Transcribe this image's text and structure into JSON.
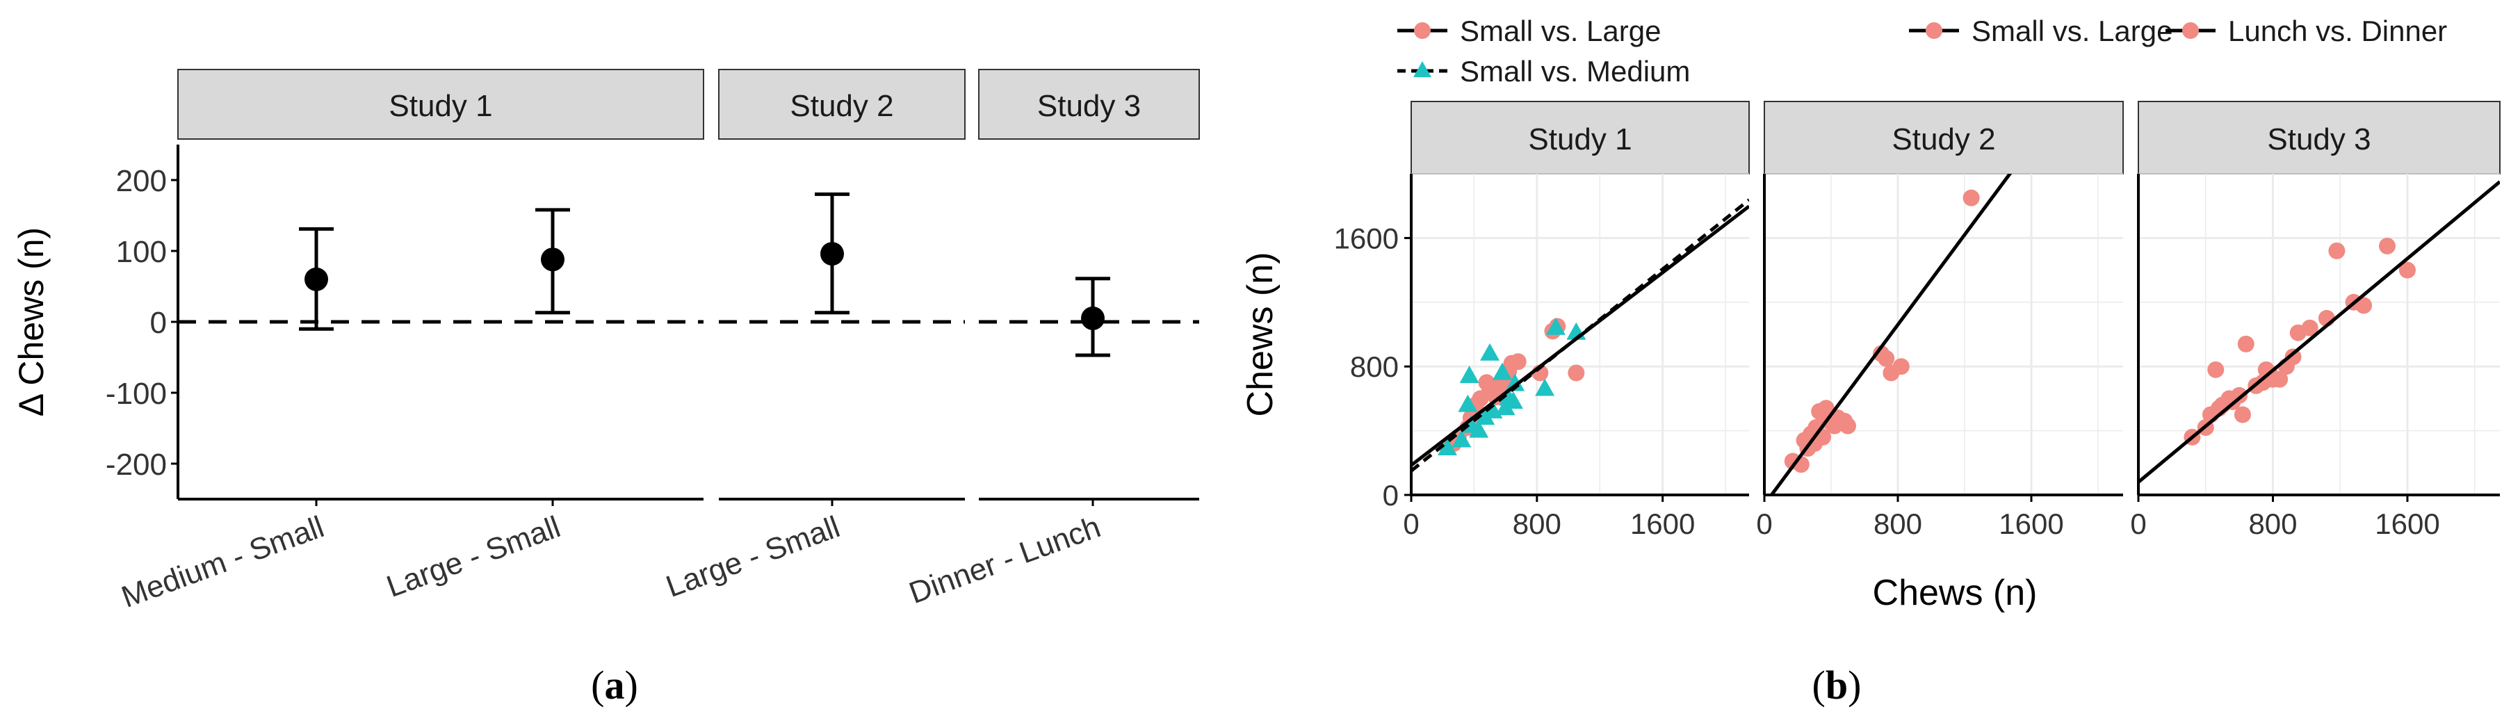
{
  "figure": {
    "caption_a": "a",
    "caption_b": "b",
    "colors": {
      "pink": "#F08A82",
      "teal": "#1FC2C2",
      "strip": "#D9D9D9",
      "grid": "#EBEBEB",
      "ink": "#000000"
    }
  },
  "chart_data": [
    {
      "id": "a",
      "type": "errorbar",
      "ylabel": "Δ Chews (n)",
      "ylim": [
        -250,
        250
      ],
      "yticks": [
        200,
        100,
        0,
        -100,
        -200
      ],
      "reference_line": 0,
      "panels": [
        {
          "strip": "Study 1",
          "points": [
            {
              "label": "Medium - Small",
              "mean": 60,
              "low": -10,
              "high": 131
            },
            {
              "label": "Large - Small",
              "mean": 88,
              "low": 13,
              "high": 158
            }
          ]
        },
        {
          "strip": "Study 2",
          "points": [
            {
              "label": "Large - Small",
              "mean": 96,
              "low": 13,
              "high": 180
            }
          ]
        },
        {
          "strip": "Study 3",
          "points": [
            {
              "label": "Dinner - Lunch",
              "mean": 5,
              "low": -47,
              "high": 61
            }
          ]
        }
      ]
    },
    {
      "id": "b",
      "type": "scatter",
      "xlabel": "Chews (n)",
      "ylabel": "Chews (n)",
      "xlim": [
        0,
        2150
      ],
      "ylim": [
        0,
        2000
      ],
      "xticks": [
        0,
        800,
        1600
      ],
      "yticks": [
        0,
        800,
        1600
      ],
      "legend": [
        {
          "label": "Small vs. Large",
          "marker": "circle",
          "line": "solid"
        },
        {
          "label": "Small vs. Medium",
          "marker": "triangle",
          "line": "dashed"
        },
        {
          "label": "Small vs. Large",
          "marker": "circle",
          "line": "solid"
        },
        {
          "label": "Lunch vs. Dinner",
          "marker": "circle",
          "line": "solid"
        }
      ],
      "panels": [
        {
          "strip": "Study 1",
          "series": [
            {
              "name": "Small vs. Large",
              "marker": "circle",
              "color": "#F08A82",
              "points": [
                [
                  230,
                  300
                ],
                [
                  270,
                  320
                ],
                [
                  300,
                  360
                ],
                [
                  360,
                  420
                ],
                [
                  380,
                  480
                ],
                [
                  400,
                  540
                ],
                [
                  410,
                  560
                ],
                [
                  440,
                  600
                ],
                [
                  480,
                  700
                ],
                [
                  500,
                  660
                ],
                [
                  540,
                  610
                ],
                [
                  560,
                  640
                ],
                [
                  580,
                  720
                ],
                [
                  600,
                  700
                ],
                [
                  620,
                  770
                ],
                [
                  640,
                  820
                ],
                [
                  680,
                  830
                ],
                [
                  820,
                  760
                ],
                [
                  900,
                  1020
                ],
                [
                  930,
                  1050
                ],
                [
                  1050,
                  760
                ]
              ],
              "fit": {
                "intercept": 185,
                "slope": 0.75,
                "style": "solid"
              }
            },
            {
              "name": "Small vs. Medium",
              "marker": "triangle",
              "color": "#1FC2C2",
              "points": [
                [
                  230,
                  290
                ],
                [
                  320,
                  340
                ],
                [
                  360,
                  560
                ],
                [
                  370,
                  740
                ],
                [
                  380,
                  430
                ],
                [
                  430,
                  400
                ],
                [
                  470,
                  480
                ],
                [
                  500,
                  880
                ],
                [
                  520,
                  520
                ],
                [
                  580,
                  760
                ],
                [
                  600,
                  540
                ],
                [
                  620,
                  600
                ],
                [
                  650,
                  580
                ],
                [
                  660,
                  690
                ],
                [
                  850,
                  660
                ],
                [
                  920,
                  1040
                ],
                [
                  1050,
                  1010
                ]
              ],
              "fit": {
                "intercept": 150,
                "slope": 0.785,
                "style": "dashed"
              }
            }
          ]
        },
        {
          "strip": "Study 2",
          "series": [
            {
              "name": "Small vs. Large",
              "marker": "circle",
              "color": "#F08A82",
              "points": [
                [
                  170,
                  210
                ],
                [
                  220,
                  190
                ],
                [
                  240,
                  340
                ],
                [
                  260,
                  290
                ],
                [
                  280,
                  380
                ],
                [
                  300,
                  320
                ],
                [
                  310,
                  420
                ],
                [
                  330,
                  520
                ],
                [
                  350,
                  360
                ],
                [
                  370,
                  540
                ],
                [
                  380,
                  480
                ],
                [
                  400,
                  450
                ],
                [
                  420,
                  430
                ],
                [
                  440,
                  480
                ],
                [
                  480,
                  460
                ],
                [
                  500,
                  430
                ],
                [
                  700,
                  880
                ],
                [
                  730,
                  850
                ],
                [
                  760,
                  760
                ],
                [
                  820,
                  800
                ],
                [
                  1240,
                  1850
                ]
              ],
              "fit": {
                "intercept": -60,
                "slope": 1.4,
                "style": "solid"
              }
            }
          ]
        },
        {
          "strip": "Study 3",
          "series": [
            {
              "name": "Lunch vs. Dinner",
              "marker": "circle",
              "color": "#F08A82",
              "points": [
                [
                  320,
                  360
                ],
                [
                  400,
                  420
                ],
                [
                  430,
                  500
                ],
                [
                  460,
                  780
                ],
                [
                  480,
                  540
                ],
                [
                  500,
                  560
                ],
                [
                  540,
                  600
                ],
                [
                  560,
                  580
                ],
                [
                  600,
                  620
                ],
                [
                  620,
                  500
                ],
                [
                  640,
                  940
                ],
                [
                  700,
                  680
                ],
                [
                  740,
                  700
                ],
                [
                  760,
                  780
                ],
                [
                  780,
                  760
                ],
                [
                  800,
                  720
                ],
                [
                  840,
                  720
                ],
                [
                  880,
                  800
                ],
                [
                  920,
                  860
                ],
                [
                  950,
                  1010
                ],
                [
                  1020,
                  1040
                ],
                [
                  1120,
                  1100
                ],
                [
                  1180,
                  1520
                ],
                [
                  1280,
                  1200
                ],
                [
                  1340,
                  1180
                ],
                [
                  1480,
                  1550
                ],
                [
                  1600,
                  1400
                ]
              ],
              "fit": {
                "intercept": 80,
                "slope": 0.87,
                "style": "solid"
              }
            }
          ]
        }
      ]
    }
  ]
}
